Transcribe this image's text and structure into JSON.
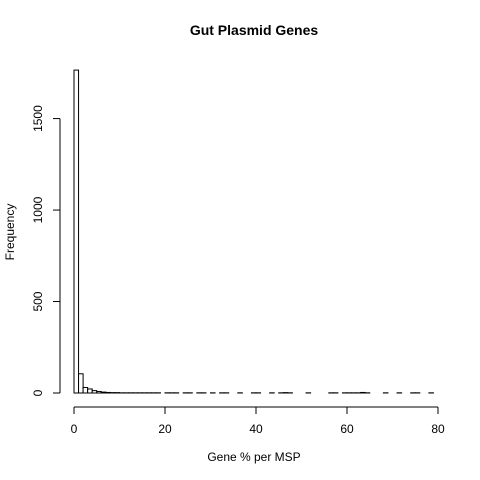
{
  "chart_data": {
    "type": "bar",
    "title": "Gut Plasmid Genes",
    "xlabel": "Gene % per MSP",
    "ylabel": "Frequency",
    "xlim": [
      0,
      80
    ],
    "ylim": [
      0,
      1760
    ],
    "xticks": [
      0,
      20,
      40,
      60,
      80
    ],
    "yticks": [
      0,
      500,
      1000,
      1500
    ],
    "bin_width": 1,
    "bin_starts": [
      0,
      1,
      2,
      3,
      4,
      5,
      6,
      7,
      8,
      9,
      10,
      11,
      12,
      13,
      14,
      15,
      16,
      17,
      18,
      19,
      20,
      21,
      22,
      23,
      24,
      25,
      26,
      27,
      28,
      29,
      30,
      31,
      32,
      33,
      34,
      35,
      36,
      37,
      38,
      39,
      40,
      41,
      42,
      43,
      44,
      45,
      46,
      47,
      48,
      49,
      50,
      51,
      52,
      53,
      54,
      55,
      56,
      57,
      58,
      59,
      60,
      61,
      62,
      63,
      64,
      65,
      66,
      67,
      68,
      69,
      70,
      71,
      72,
      73,
      74,
      75,
      76,
      77,
      78
    ],
    "values": [
      1765,
      105,
      30,
      22,
      13,
      8,
      5,
      3,
      2,
      2,
      1,
      1,
      1,
      1,
      1,
      1,
      1,
      1,
      1,
      0,
      1,
      1,
      1,
      0,
      1,
      1,
      0,
      1,
      1,
      0,
      1,
      0,
      1,
      1,
      0,
      0,
      1,
      0,
      0,
      1,
      1,
      0,
      0,
      1,
      0,
      1,
      2,
      1,
      0,
      0,
      0,
      1,
      0,
      0,
      0,
      0,
      1,
      1,
      0,
      1,
      1,
      1,
      1,
      3,
      1,
      0,
      0,
      0,
      1,
      0,
      0,
      1,
      0,
      0,
      1,
      1,
      0,
      0,
      1
    ],
    "grid": false
  }
}
